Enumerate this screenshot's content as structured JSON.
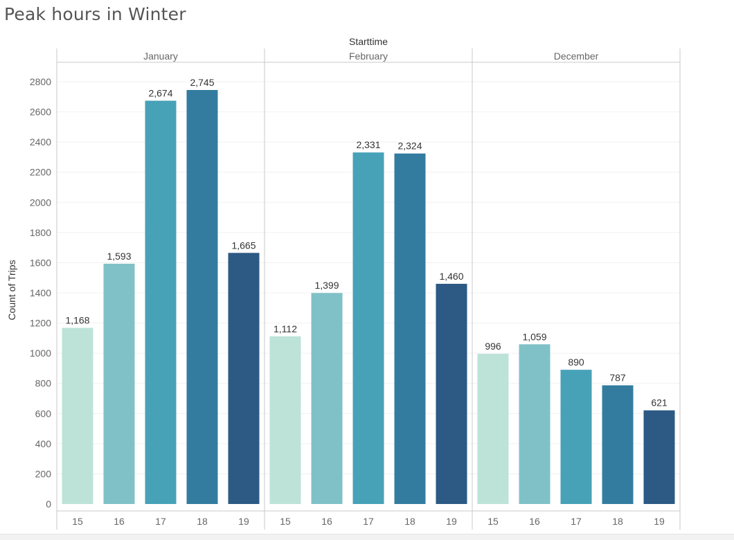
{
  "title": "Peak hours in Winter",
  "chart_data": {
    "type": "bar",
    "column_header": "Starttime",
    "ylabel": "Count of Trips",
    "ylim": [
      0,
      2900
    ],
    "y_ticks": [
      0,
      200,
      400,
      600,
      800,
      1000,
      1200,
      1400,
      1600,
      1800,
      2000,
      2200,
      2400,
      2600,
      2800
    ],
    "categories": [
      "15",
      "16",
      "17",
      "18",
      "19"
    ],
    "colors": [
      "#bde3d9",
      "#80c1c8",
      "#47a2b8",
      "#337c9f",
      "#2d5a84"
    ],
    "grid": true,
    "panels": [
      {
        "name": "January",
        "values": [
          1168,
          1593,
          2674,
          2745,
          1665
        ],
        "labels": [
          "1,168",
          "1,593",
          "2,674",
          "2,745",
          "1,665"
        ]
      },
      {
        "name": "February",
        "values": [
          1112,
          1399,
          2331,
          2324,
          1460
        ],
        "labels": [
          "1,112",
          "1,399",
          "2,331",
          "2,324",
          "1,460"
        ]
      },
      {
        "name": "December",
        "values": [
          996,
          1059,
          890,
          787,
          621
        ],
        "labels": [
          "996",
          "1,059",
          "890",
          "787",
          "621"
        ]
      }
    ]
  }
}
